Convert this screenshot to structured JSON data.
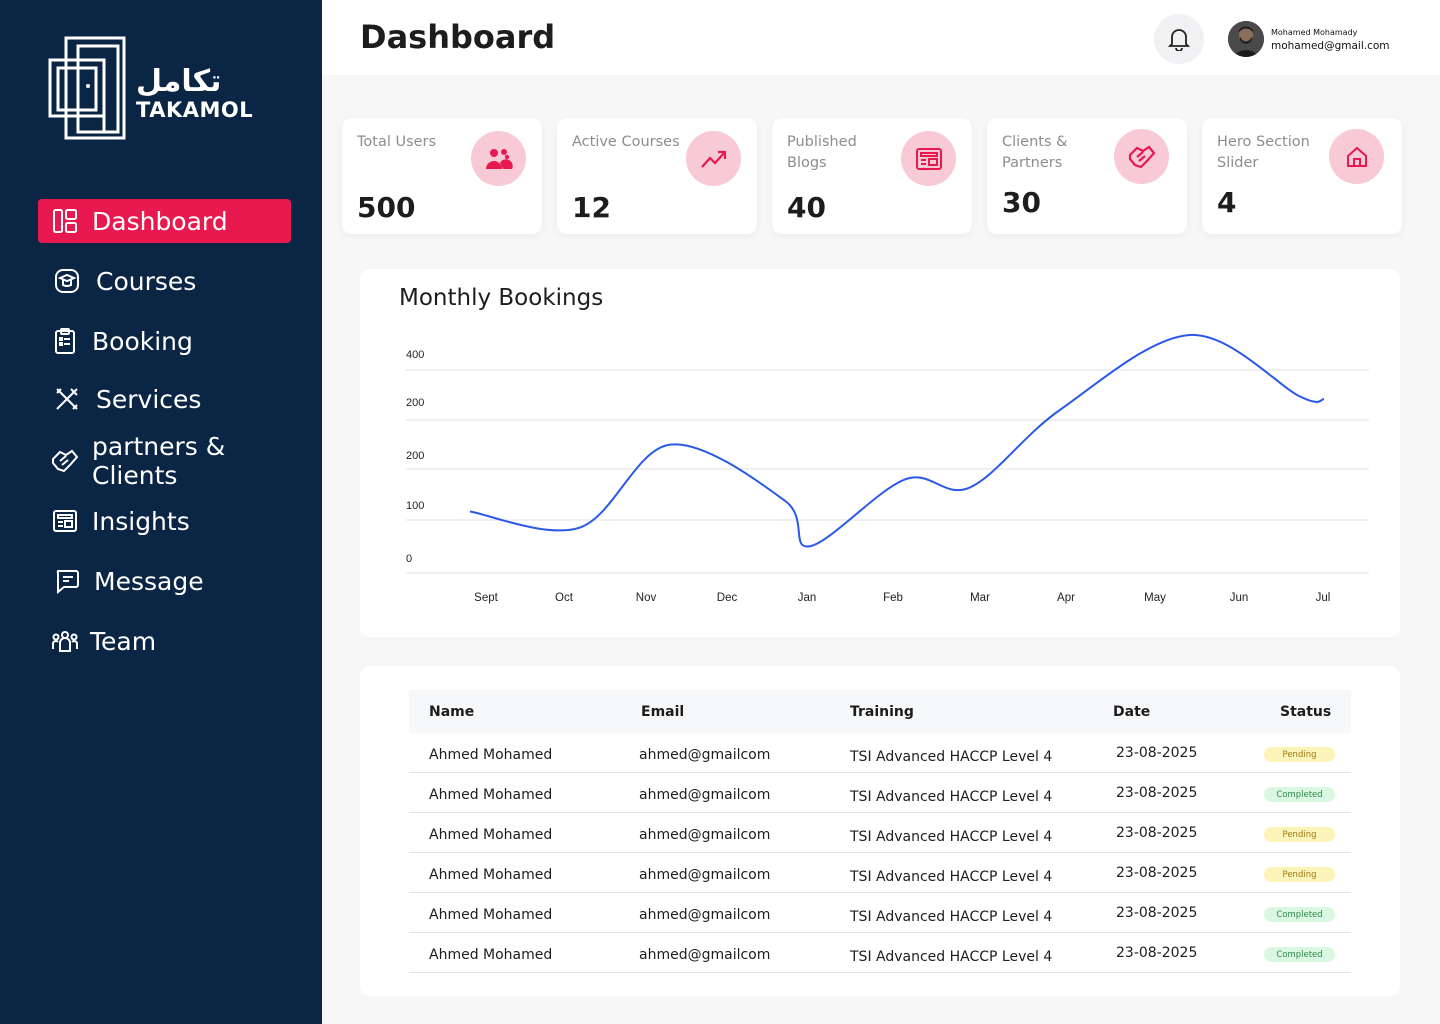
{
  "brand": {
    "arabic": "تكامل",
    "english": "TAKAMOL"
  },
  "sidebar": {
    "items": [
      {
        "label": "Dashboard",
        "icon": "layout-icon",
        "active": true
      },
      {
        "label": "Courses",
        "icon": "graduation-cap-icon",
        "active": false
      },
      {
        "label": "Booking",
        "icon": "clipboard-icon",
        "active": false
      },
      {
        "label": "Services",
        "icon": "tools-icon",
        "active": false
      },
      {
        "label": "partners & Clients",
        "icon": "handshake-icon",
        "active": false
      },
      {
        "label": "Insights",
        "icon": "newspaper-icon",
        "active": false
      },
      {
        "label": "Message",
        "icon": "message-icon",
        "active": false
      },
      {
        "label": "Team",
        "icon": "team-icon",
        "active": false
      }
    ]
  },
  "header": {
    "title": "Dashboard",
    "user": {
      "name": "Mohamed Mohamady",
      "email": "mohamed@gmail.com"
    }
  },
  "stats": [
    {
      "label": "Total Users",
      "value": "500",
      "icon": "users-icon"
    },
    {
      "label": "Active Courses",
      "value": "12",
      "icon": "trending-up-icon"
    },
    {
      "label": "Published Blogs",
      "value": "40",
      "icon": "newspaper-icon"
    },
    {
      "label": "Clients & Partners",
      "value": "30",
      "icon": "handshake-icon"
    },
    {
      "label": "Hero Section Slider",
      "value": "4",
      "icon": "home-icon"
    }
  ],
  "colors": {
    "sidebar": "#0b2545",
    "accent": "#e8194f",
    "line": "#2b59e6",
    "icon_bg": "#f7cad6"
  },
  "chart_data": {
    "type": "line",
    "title": "Monthly Bookings",
    "y_tick_labels": [
      "400",
      "200",
      "200",
      "100",
      "0"
    ],
    "categories": [
      "Sept",
      "Oct",
      "Nov",
      "Dec",
      "Jan",
      "Feb",
      "Mar",
      "Apr",
      "May",
      "Jun",
      "Jul"
    ],
    "series": [
      {
        "values": [
          115,
          85,
          240,
          135,
          50,
          175,
          160,
          305,
          445,
          330,
          325
        ]
      }
    ],
    "grid": true,
    "legend": "none"
  },
  "table": {
    "columns": [
      "Name",
      "Email",
      "Training",
      "Date",
      "Status"
    ],
    "rows": [
      {
        "name": "Ahmed Mohamed",
        "email": "ahmed@gmailcom",
        "training": "TSI Advanced HACCP Level 4",
        "date": "23-08-2025",
        "status": "Pending",
        "status_type": "pending"
      },
      {
        "name": "Ahmed Mohamed",
        "email": "ahmed@gmailcom",
        "training": "TSI Advanced HACCP Level 4",
        "date": "23-08-2025",
        "status": "Completed",
        "status_type": "completed"
      },
      {
        "name": "Ahmed Mohamed",
        "email": "ahmed@gmailcom",
        "training": "TSI Advanced HACCP Level 4",
        "date": "23-08-2025",
        "status": "Pending",
        "status_type": "pending"
      },
      {
        "name": "Ahmed Mohamed",
        "email": "ahmed@gmailcom",
        "training": "TSI Advanced HACCP Level 4",
        "date": "23-08-2025",
        "status": "Pending",
        "status_type": "pending"
      },
      {
        "name": "Ahmed Mohamed",
        "email": "ahmed@gmailcom",
        "training": "TSI Advanced HACCP Level 4",
        "date": "23-08-2025",
        "status": "Completed",
        "status_type": "completed"
      },
      {
        "name": "Ahmed Mohamed",
        "email": "ahmed@gmailcom",
        "training": "TSI Advanced HACCP Level 4",
        "date": "23-08-2025",
        "status": "Completed",
        "status_type": "completed"
      }
    ]
  }
}
